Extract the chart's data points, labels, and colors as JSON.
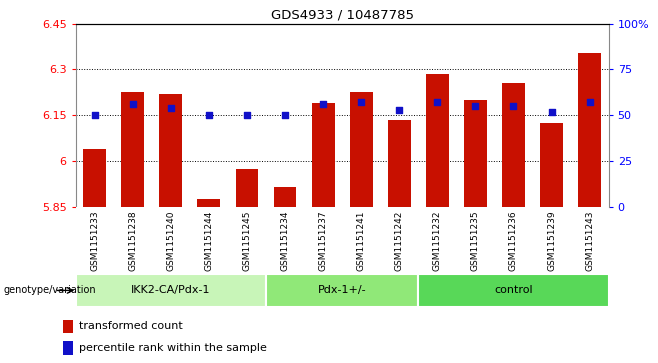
{
  "title": "GDS4933 / 10487785",
  "samples": [
    "GSM1151233",
    "GSM1151238",
    "GSM1151240",
    "GSM1151244",
    "GSM1151245",
    "GSM1151234",
    "GSM1151237",
    "GSM1151241",
    "GSM1151242",
    "GSM1151232",
    "GSM1151235",
    "GSM1151236",
    "GSM1151239",
    "GSM1151243"
  ],
  "red_values": [
    6.04,
    6.225,
    6.22,
    5.875,
    5.975,
    5.915,
    6.19,
    6.225,
    6.135,
    6.285,
    6.2,
    6.255,
    6.125,
    6.355
  ],
  "blue_values": [
    50,
    56,
    54,
    50,
    50,
    50,
    56,
    57,
    53,
    57,
    55,
    55,
    52,
    57
  ],
  "groups": [
    {
      "label": "IKK2-CA/Pdx-1",
      "start": 0,
      "end": 5,
      "color": "#c8f5b8"
    },
    {
      "label": "Pdx-1+/-",
      "start": 5,
      "end": 9,
      "color": "#90e878"
    },
    {
      "label": "control",
      "start": 9,
      "end": 14,
      "color": "#58d858"
    }
  ],
  "ylim_left": [
    5.85,
    6.45
  ],
  "ylim_right": [
    0,
    100
  ],
  "yticks_left": [
    5.85,
    6.0,
    6.15,
    6.3,
    6.45
  ],
  "ytick_labels_left": [
    "5.85",
    "6",
    "6.15",
    "6.3",
    "6.45"
  ],
  "yticks_right": [
    0,
    25,
    50,
    75,
    100
  ],
  "ytick_labels_right": [
    "0",
    "25",
    "50",
    "75",
    "100%"
  ],
  "bar_color": "#c81000",
  "dot_color": "#1010c8",
  "baseline": 5.85,
  "legend_red": "transformed count",
  "legend_blue": "percentile rank within the sample",
  "group_label": "genotype/variation",
  "sname_bg": "#cccccc",
  "sname_div": "#ffffff"
}
